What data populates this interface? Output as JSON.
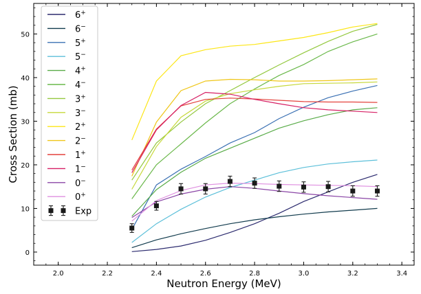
{
  "chart_data": {
    "type": "line",
    "title": "",
    "xlabel": "Neutron Energy (MeV)",
    "ylabel": "Cross Section (mb)",
    "xlim": [
      1.9,
      3.45
    ],
    "ylim": [
      -3,
      57
    ],
    "x_ticks": [
      2.0,
      2.2,
      2.4,
      2.6,
      2.8,
      3.0,
      3.2,
      3.4
    ],
    "x_tick_labels": [
      "2.0",
      "2.2",
      "2.4",
      "2.6",
      "2.8",
      "3.0",
      "3.2",
      "3.4"
    ],
    "y_ticks": [
      0,
      10,
      20,
      30,
      40,
      50
    ],
    "y_tick_labels": [
      "0",
      "10",
      "20",
      "30",
      "40",
      "50"
    ],
    "grid": false,
    "legend_position": "upper-left",
    "x": [
      2.3,
      2.4,
      2.5,
      2.6,
      2.7,
      2.8,
      2.9,
      3.0,
      3.1,
      3.2,
      3.3
    ],
    "series": [
      {
        "base": "6",
        "sup": "+",
        "color": "#2b2a6e",
        "values": [
          0.1,
          0.6,
          1.4,
          2.7,
          4.5,
          6.5,
          8.9,
          11.6,
          13.8,
          16.0,
          17.8
        ]
      },
      {
        "base": "6",
        "sup": "−",
        "color": "#103a4c",
        "values": [
          1.0,
          2.8,
          4.2,
          5.4,
          6.5,
          7.4,
          8.1,
          8.7,
          9.2,
          9.6,
          10.0
        ]
      },
      {
        "base": "5",
        "sup": "+",
        "color": "#3a70b3",
        "values": [
          5.2,
          15.4,
          19.0,
          21.9,
          25.0,
          27.4,
          30.6,
          33.2,
          35.4,
          36.9,
          38.2
        ]
      },
      {
        "base": "5",
        "sup": "−",
        "color": "#5bbfd9",
        "values": [
          2.2,
          6.5,
          9.8,
          12.6,
          14.8,
          16.5,
          18.2,
          19.4,
          20.2,
          20.7,
          21.1
        ]
      },
      {
        "base": "4",
        "sup": "+",
        "color": "#58ab47",
        "values": [
          8.2,
          14.3,
          18.3,
          21.5,
          23.8,
          26.1,
          28.4,
          30.1,
          31.5,
          32.6,
          33.1
        ]
      },
      {
        "base": "4",
        "sup": "−",
        "color": "#6ab84a",
        "values": [
          12.2,
          20.0,
          24.8,
          29.6,
          34.0,
          37.4,
          40.5,
          43.0,
          46.0,
          48.2,
          50.0
        ]
      },
      {
        "base": "3",
        "sup": "+",
        "color": "#93c83e",
        "values": [
          16.5,
          25.0,
          29.8,
          34.0,
          37.0,
          40.0,
          42.9,
          45.7,
          48.3,
          50.6,
          52.2
        ]
      },
      {
        "base": "3",
        "sup": "−",
        "color": "#c6d83a",
        "values": [
          14.4,
          24.2,
          30.9,
          34.6,
          36.3,
          37.2,
          38.0,
          38.6,
          38.7,
          38.8,
          39.0
        ]
      },
      {
        "base": "2",
        "sup": "+",
        "color": "#fce614",
        "values": [
          25.7,
          39.2,
          45.0,
          46.4,
          47.2,
          47.6,
          48.4,
          49.2,
          50.3,
          51.6,
          52.4
        ]
      },
      {
        "base": "2",
        "sup": "−",
        "color": "#efc618",
        "values": [
          17.4,
          29.8,
          37.0,
          39.2,
          39.6,
          39.5,
          39.2,
          39.2,
          39.3,
          39.5,
          39.7
        ]
      },
      {
        "base": "1",
        "sup": "+",
        "color": "#e3413b",
        "values": [
          18.8,
          28.2,
          33.5,
          35.0,
          35.3,
          35.1,
          34.8,
          34.5,
          34.4,
          34.4,
          34.3
        ]
      },
      {
        "base": "1",
        "sup": "−",
        "color": "#d61e63",
        "values": [
          18.2,
          28.0,
          33.6,
          36.6,
          36.2,
          35.0,
          34.0,
          33.1,
          32.6,
          32.3,
          32.0
        ]
      },
      {
        "base": "0",
        "sup": "−",
        "color": "#8a45a6",
        "values": [
          7.9,
          11.5,
          13.3,
          14.4,
          15.0,
          14.6,
          14.0,
          13.4,
          12.9,
          12.5,
          12.1
        ]
      },
      {
        "base": "0",
        "sup": "+",
        "color": "#df8fe0",
        "values": [
          7.1,
          11.8,
          14.1,
          15.4,
          15.8,
          15.7,
          15.5,
          15.4,
          15.3,
          15.2,
          15.0
        ]
      }
    ],
    "experiment": {
      "name": "Exp",
      "color": "#1a1a1a",
      "x": [
        2.3,
        2.4,
        2.5,
        2.6,
        2.7,
        2.8,
        2.9,
        3.0,
        3.1,
        3.2,
        3.3
      ],
      "y": [
        5.5,
        10.6,
        14.5,
        14.5,
        16.2,
        15.8,
        15.1,
        14.9,
        15.0,
        14.0,
        14.0
      ],
      "err": [
        1.0,
        1.0,
        1.2,
        1.2,
        1.2,
        1.2,
        1.2,
        1.2,
        1.2,
        1.2,
        1.2
      ]
    }
  }
}
